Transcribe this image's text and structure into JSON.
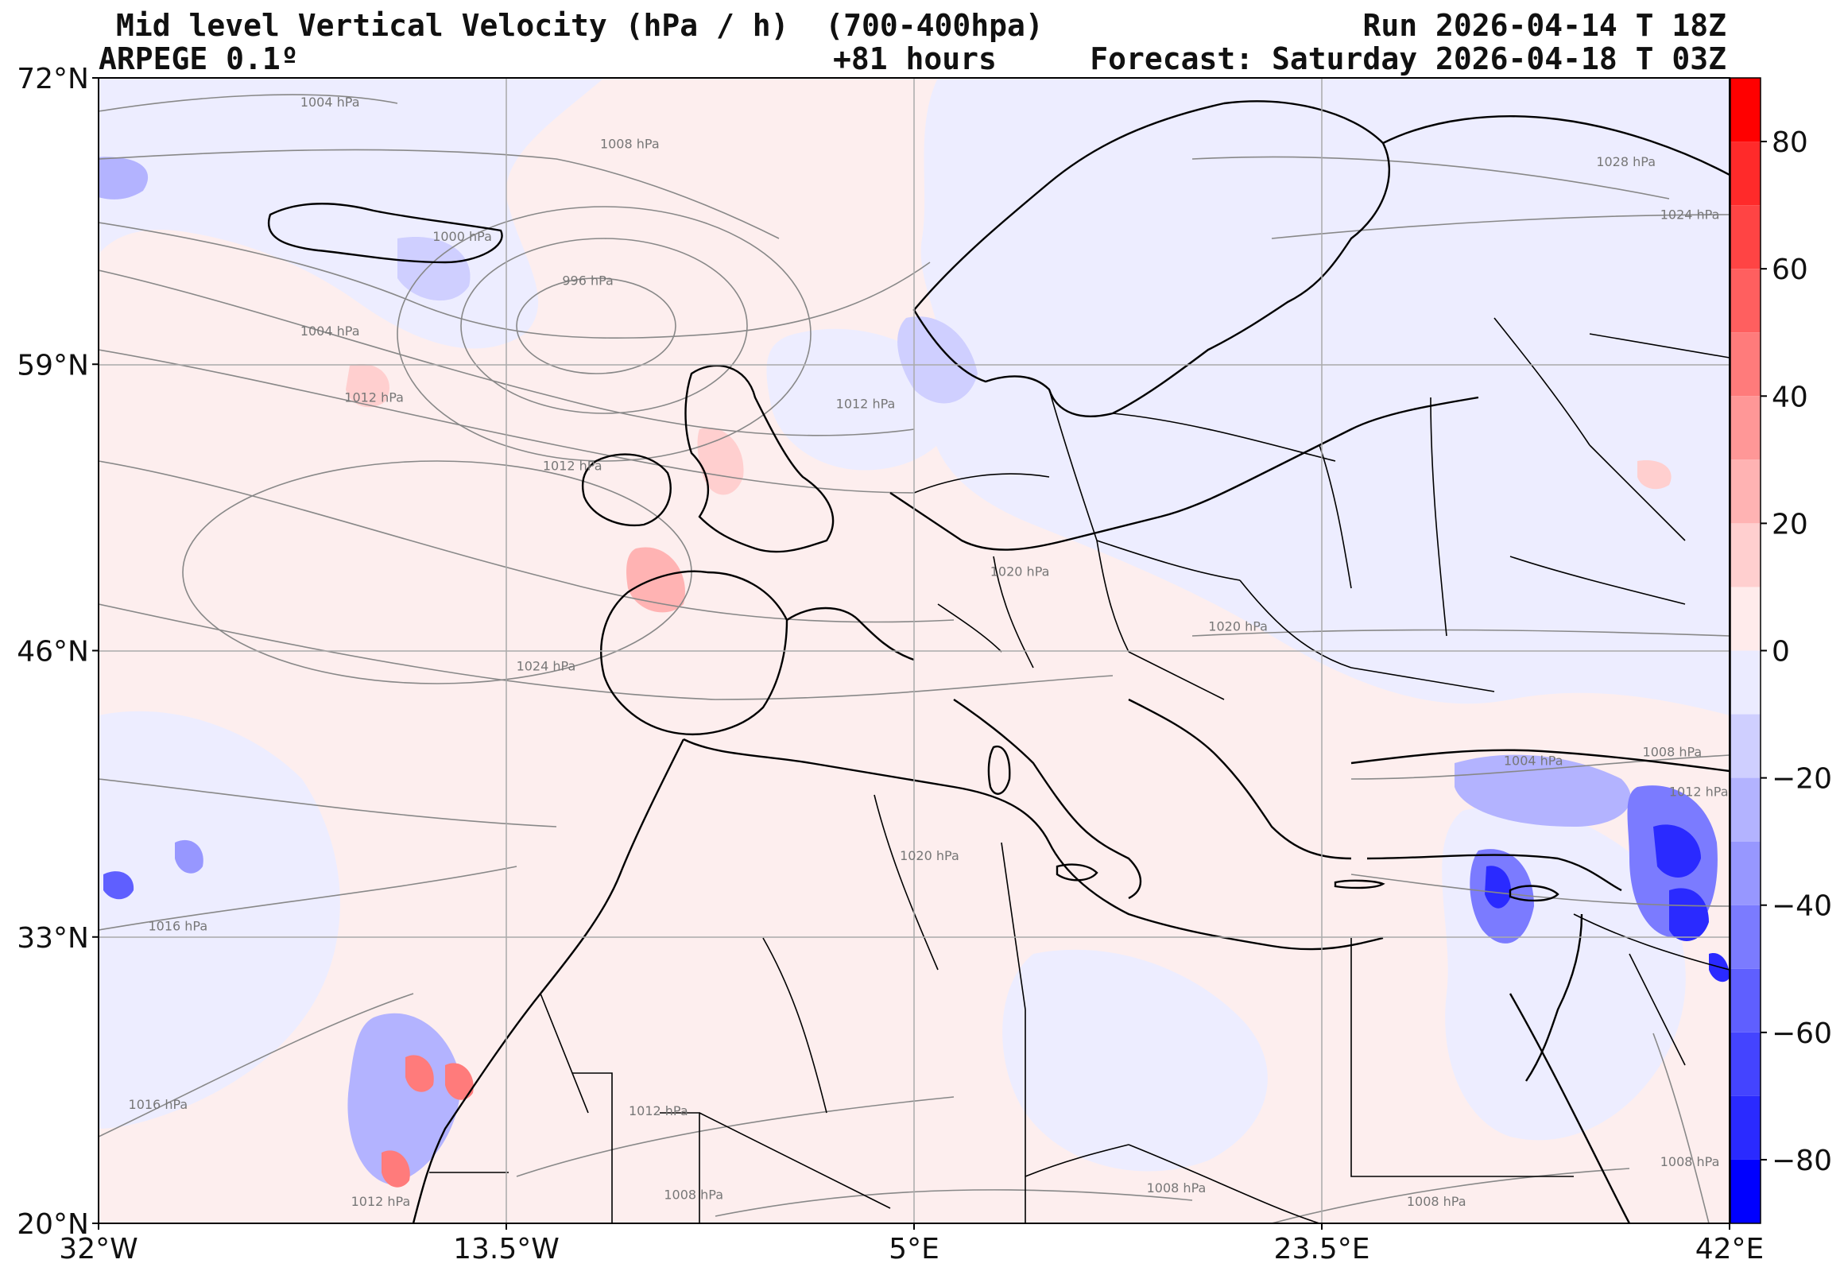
{
  "header": {
    "title": "Mid level Vertical Velocity (hPa / h)  (700-400hpa)",
    "run": "Run 2026-04-14 T 18Z",
    "model": "ARPEGE 0.1º",
    "lead": "+81 hours",
    "forecast": "Forecast: Saturday 2026-04-18 T 03Z"
  },
  "map": {
    "lon_range": [
      -32,
      42
    ],
    "lat_range": [
      20,
      72
    ],
    "lat_ticks": [
      {
        "value": 72,
        "label": "72°N"
      },
      {
        "value": 59,
        "label": "59°N"
      },
      {
        "value": 46,
        "label": "46°N"
      },
      {
        "value": 33,
        "label": "33°N"
      },
      {
        "value": 20,
        "label": "20°N"
      }
    ],
    "lon_ticks": [
      {
        "value": -32,
        "label": "32°W"
      },
      {
        "value": -13.5,
        "label": "13.5°W"
      },
      {
        "value": 5,
        "label": "5°E"
      },
      {
        "value": 23.5,
        "label": "23.5°E"
      },
      {
        "value": 42,
        "label": "42°E"
      }
    ],
    "isobars": [
      {
        "label": "1004 hPa",
        "lon": -21.5,
        "lat": 70.7
      },
      {
        "label": "1008 hPa",
        "lon": -7.9,
        "lat": 68.8
      },
      {
        "label": "1000 hPa",
        "lon": -15.5,
        "lat": 64.6
      },
      {
        "label": "996 hPa",
        "lon": -9.8,
        "lat": 62.6
      },
      {
        "label": "1004 hPa",
        "lon": -21.5,
        "lat": 60.3
      },
      {
        "label": "1012 hPa",
        "lon": -19.5,
        "lat": 57.3
      },
      {
        "label": "1012 hPa",
        "lon": -10.5,
        "lat": 54.2
      },
      {
        "label": "1024 hPa",
        "lon": -11.7,
        "lat": 45.1
      },
      {
        "label": "1016 hPa",
        "lon": -28.4,
        "lat": 33.3
      },
      {
        "label": "1016 hPa",
        "lon": -29.3,
        "lat": 25.2
      },
      {
        "label": "1012 hPa",
        "lon": 2.8,
        "lat": 57.0
      },
      {
        "label": "1020 hPa",
        "lon": 9.8,
        "lat": 49.4
      },
      {
        "label": "1020 hPa",
        "lon": 19.7,
        "lat": 46.9
      },
      {
        "label": "1020 hPa",
        "lon": 5.7,
        "lat": 36.5
      },
      {
        "label": "1012 hPa",
        "lon": -6.6,
        "lat": 24.9
      },
      {
        "label": "1008 hPa",
        "lon": -5.0,
        "lat": 21.1
      },
      {
        "label": "1012 hPa",
        "lon": -19.2,
        "lat": 20.8
      },
      {
        "label": "1008 hPa",
        "lon": 16.9,
        "lat": 21.4
      },
      {
        "label": "1008 hPa",
        "lon": 28.7,
        "lat": 20.8
      },
      {
        "label": "1028 hPa",
        "lon": 37.3,
        "lat": 68.0
      },
      {
        "label": "1024 hPa",
        "lon": 40.2,
        "lat": 65.6
      },
      {
        "label": "1004 hPa",
        "lon": 33.1,
        "lat": 40.8
      },
      {
        "label": "1008 hPa",
        "lon": 39.4,
        "lat": 41.2
      },
      {
        "label": "1012 hPa",
        "lon": 40.6,
        "lat": 39.4
      },
      {
        "label": "1008 hPa",
        "lon": 40.2,
        "lat": 22.6
      }
    ]
  },
  "colorbar": {
    "min": -90,
    "max": 90,
    "ticks": [
      {
        "value": 80,
        "label": "80"
      },
      {
        "value": 60,
        "label": "60"
      },
      {
        "value": 40,
        "label": "40"
      },
      {
        "value": 20,
        "label": "20"
      },
      {
        "value": 0,
        "label": "0"
      },
      {
        "value": -20,
        "label": "−20"
      },
      {
        "value": -40,
        "label": "−40"
      },
      {
        "value": -60,
        "label": "−60"
      },
      {
        "value": -80,
        "label": "−80"
      }
    ],
    "bands": [
      {
        "from": 80,
        "to": 90,
        "color": "#ff0000"
      },
      {
        "from": 70,
        "to": 80,
        "color": "#ff2a2a"
      },
      {
        "from": 60,
        "to": 70,
        "color": "#ff4444"
      },
      {
        "from": 50,
        "to": 60,
        "color": "#ff5f5f"
      },
      {
        "from": 40,
        "to": 50,
        "color": "#ff7b7b"
      },
      {
        "from": 30,
        "to": 40,
        "color": "#ff9797"
      },
      {
        "from": 20,
        "to": 30,
        "color": "#ffb3b3"
      },
      {
        "from": 10,
        "to": 20,
        "color": "#ffcfcf"
      },
      {
        "from": 0,
        "to": 10,
        "color": "#ffebeb"
      },
      {
        "from": -10,
        "to": 0,
        "color": "#ebebff"
      },
      {
        "from": -20,
        "to": -10,
        "color": "#cfcfff"
      },
      {
        "from": -30,
        "to": -20,
        "color": "#b3b3ff"
      },
      {
        "from": -40,
        "to": -30,
        "color": "#9797ff"
      },
      {
        "from": -50,
        "to": -40,
        "color": "#7b7bff"
      },
      {
        "from": -60,
        "to": -50,
        "color": "#5f5fff"
      },
      {
        "from": -70,
        "to": -60,
        "color": "#4444ff"
      },
      {
        "from": -80,
        "to": -70,
        "color": "#2a2aff"
      },
      {
        "from": -90,
        "to": -80,
        "color": "#0000ff"
      }
    ]
  }
}
